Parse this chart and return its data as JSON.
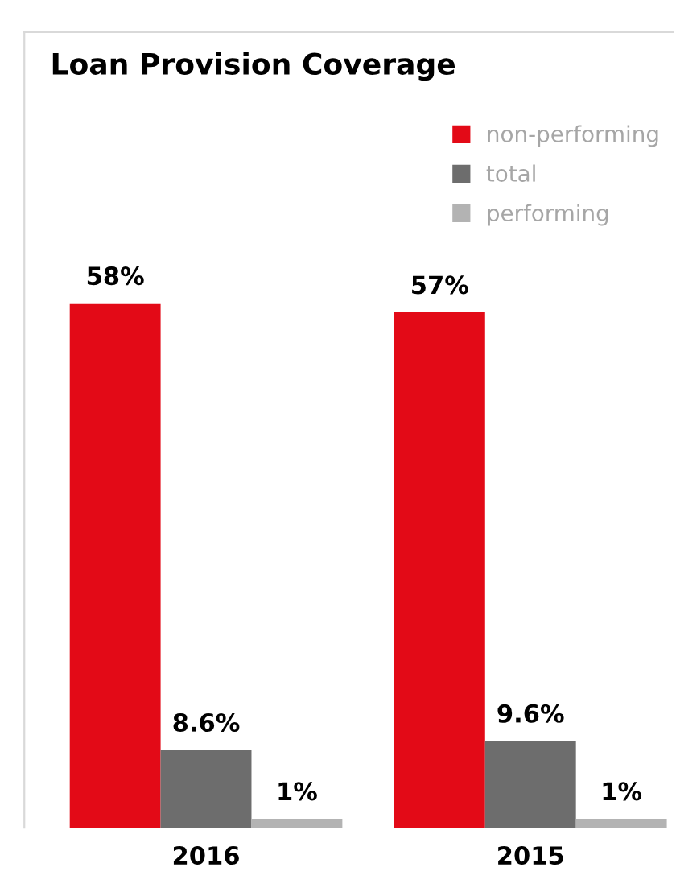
{
  "chart_data": {
    "type": "bar",
    "title": "Loan Provision Coverage",
    "categories": [
      "2016",
      "2015"
    ],
    "series": [
      {
        "name": "non-performing",
        "color": "#e30a17",
        "values": [
          58,
          57
        ],
        "value_labels": [
          "58%",
          "57%"
        ]
      },
      {
        "name": "total",
        "color": "#6d6d6d",
        "values": [
          8.6,
          9.6
        ],
        "value_labels": [
          "8.6%",
          "9.6%"
        ]
      },
      {
        "name": "performing",
        "color": "#b3b3b3",
        "values": [
          1,
          1
        ],
        "value_labels": [
          "1%",
          "1%"
        ]
      }
    ],
    "ylim": [
      0,
      88
    ],
    "legend": "top right",
    "grid": false
  }
}
